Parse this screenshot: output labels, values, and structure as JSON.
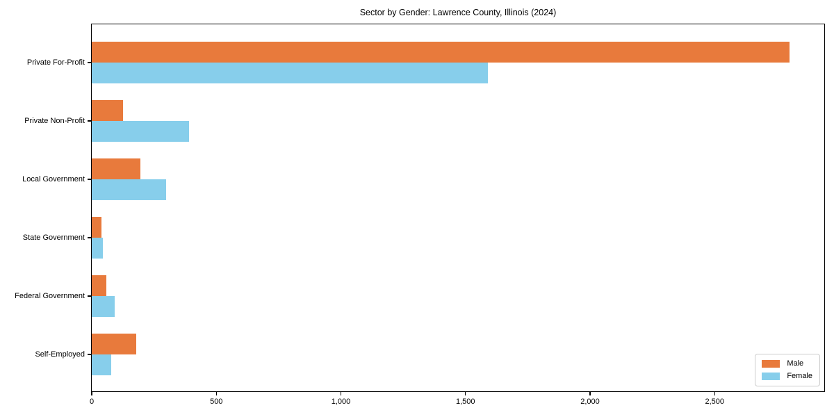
{
  "chart_data": {
    "type": "bar",
    "orientation": "horizontal",
    "title": "Sector by Gender: Lawrence County, Illinois (2024)",
    "categories": [
      "Private For-Profit",
      "Private Non-Profit",
      "Local Government",
      "State Government",
      "Federal Government",
      "Self-Employed"
    ],
    "series": [
      {
        "name": "Male",
        "color": "#E87A3C",
        "values": [
          2800,
          125,
          195,
          40,
          58,
          178
        ]
      },
      {
        "name": "Female",
        "color": "#87CEEB",
        "values": [
          1590,
          390,
          297,
          45,
          91,
          79
        ]
      }
    ],
    "xlabel": "",
    "ylabel": "",
    "xlim": [
      0,
      2940
    ],
    "x_ticks": [
      0,
      500,
      1000,
      1500,
      2000,
      2500
    ],
    "x_tick_labels": [
      "0",
      "500",
      "1,000",
      "1,500",
      "2,000",
      "2,500"
    ],
    "grid": false,
    "legend": {
      "position": "lower-right",
      "items": [
        "Male",
        "Female"
      ]
    }
  }
}
